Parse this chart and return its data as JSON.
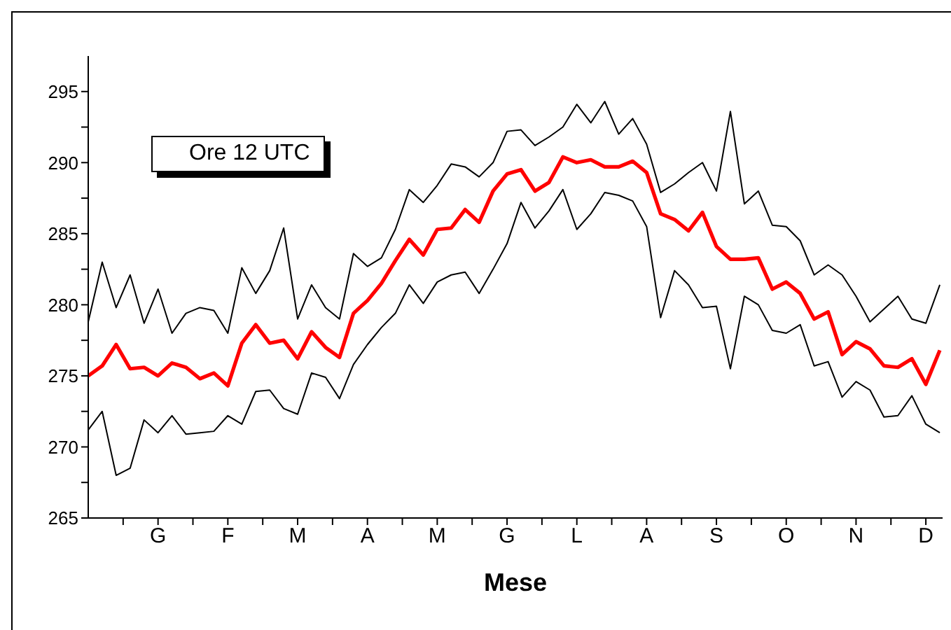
{
  "chart_data": {
    "type": "line",
    "xlabel": "Mese",
    "annotations": [
      "Ore 12  UTC"
    ],
    "categories": [
      null,
      null,
      null,
      null,
      null,
      "G",
      null,
      null,
      null,
      null,
      "F",
      null,
      null,
      null,
      null,
      "M",
      null,
      null,
      null,
      null,
      "A",
      null,
      null,
      null,
      null,
      "M",
      null,
      null,
      null,
      null,
      "G",
      null,
      null,
      null,
      null,
      "L",
      null,
      null,
      null,
      null,
      "A",
      null,
      null,
      null,
      null,
      "S",
      null,
      null,
      null,
      null,
      "O",
      null,
      null,
      null,
      null,
      "N",
      null,
      null,
      null,
      null,
      "D",
      null
    ],
    "ylim": [
      265,
      297.5
    ],
    "yticks": [
      265,
      {
        "value": 267.5,
        "label": null
      },
      270,
      {
        "value": 272.5,
        "label": null
      },
      275,
      {
        "value": 277.5,
        "label": null
      },
      280,
      {
        "value": 282.5,
        "label": null
      },
      285,
      {
        "value": 287.5,
        "label": null
      },
      290,
      {
        "value": 292.5,
        "label": null
      },
      295
    ],
    "marker": "none",
    "line_style": "solid",
    "series": [
      {
        "color": "#000000",
        "values": [
          278.8,
          283,
          279.8,
          282.1,
          278.7,
          281.1,
          278,
          279.4,
          279.8,
          279.6,
          278,
          282.6,
          280.8,
          282.4,
          285.4,
          279,
          281.4,
          279.8,
          279,
          283.6,
          282.7,
          283.3,
          285.3,
          288.1,
          287.2,
          288.4,
          289.9,
          289.7,
          289,
          290,
          292.2,
          292.3,
          291.2,
          291.8,
          292.5,
          294.1,
          292.8,
          294.3,
          292,
          293.1,
          291.3,
          287.9,
          288.5,
          289.3,
          290,
          288,
          293.6,
          287.1,
          288,
          285.6,
          285.5,
          284.5,
          282.1,
          282.8,
          282.1,
          280.6,
          278.8,
          279.7,
          280.6,
          279,
          278.7,
          281.4
        ]
      },
      {
        "color": "#000000",
        "values": [
          271.2,
          272.5,
          268,
          268.5,
          271.9,
          271,
          272.2,
          270.9,
          271,
          271.1,
          272.2,
          271.6,
          273.9,
          274,
          272.7,
          272.3,
          275.2,
          274.9,
          273.4,
          275.8,
          277.2,
          278.4,
          279.4,
          281.4,
          280.1,
          281.6,
          282.1,
          282.3,
          280.8,
          282.5,
          284.3,
          287.2,
          285.4,
          286.6,
          288.1,
          285.3,
          286.4,
          287.9,
          287.7,
          287.3,
          285.5,
          279.1,
          282.4,
          281.4,
          279.8,
          279.9,
          275.5,
          280.6,
          280,
          278.2,
          278,
          278.6,
          275.7,
          276,
          273.5,
          274.6,
          274,
          272.1,
          272.2,
          273.6,
          271.6,
          271
        ]
      },
      {
        "color": "#ff0000",
        "values": [
          275,
          275.7,
          277.2,
          275.5,
          275.6,
          275,
          275.9,
          275.6,
          274.8,
          275.2,
          274.3,
          277.3,
          278.6,
          277.3,
          277.5,
          276.2,
          278.1,
          277,
          276.3,
          279.4,
          280.3,
          281.5,
          283.1,
          284.6,
          283.5,
          285.3,
          285.4,
          286.7,
          285.8,
          288,
          289.2,
          289.5,
          288,
          288.6,
          290.4,
          290,
          290.2,
          289.7,
          289.7,
          290.1,
          289.3,
          286.4,
          286,
          285.2,
          286.5,
          284.1,
          283.2,
          283.2,
          283.3,
          281.1,
          281.6,
          280.8,
          279,
          279.5,
          276.5,
          277.4,
          276.9,
          275.7,
          275.6,
          276.2,
          274.4,
          276.8
        ]
      }
    ]
  }
}
